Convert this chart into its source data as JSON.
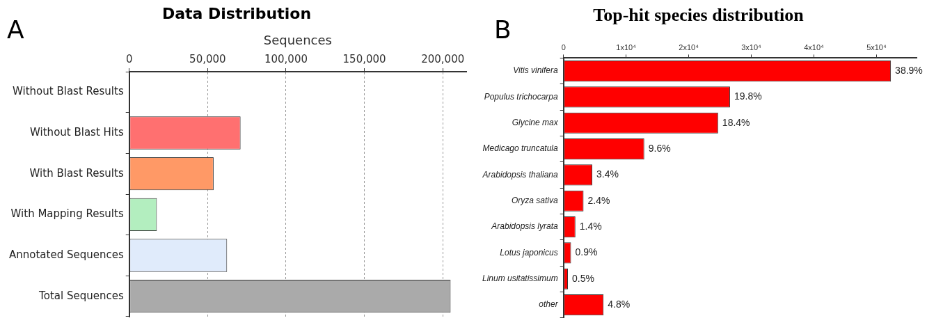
{
  "chart_data": [
    {
      "type": "bar",
      "title": "Data Distribution",
      "xlabel": "Sequences",
      "orientation": "horizontal",
      "annotations": [
        "A"
      ],
      "categories": [
        "Without Blast Results",
        "Without Blast Hits",
        "With Blast Results",
        "With Mapping Results",
        "Annotated Sequences",
        "Total Sequences"
      ],
      "values": [
        500,
        71000,
        53800,
        17600,
        62400,
        205000
      ],
      "colors": [
        "#333333",
        "#ff7070",
        "#ff9966",
        "#b3eebf",
        "#e0ebfb",
        "#aaaaaa"
      ],
      "xlim": [
        0,
        215000
      ],
      "xticks": [
        {
          "value": 0,
          "label": "0"
        },
        {
          "value": 50000,
          "label": "50,000"
        },
        {
          "value": 100000,
          "label": "100,000"
        },
        {
          "value": 150000,
          "label": "150,000"
        },
        {
          "value": 200000,
          "label": "200,000"
        }
      ],
      "grid": "x"
    },
    {
      "type": "bar",
      "title": "Top-hit species distribution",
      "orientation": "horizontal",
      "annotations": [
        "B",
        {
          "text": "38.9%",
          "x": 52300,
          "y": "Vitis vinifera"
        },
        {
          "text": "19.8%",
          "x": 26600,
          "y": "Populus trichocarpa"
        },
        {
          "text": "18.4%",
          "x": 24700,
          "y": "Glycine max"
        },
        {
          "text": "9.6%",
          "x": 12900,
          "y": "Medicago truncatula"
        },
        {
          "text": "3.4%",
          "x": 4600,
          "y": "Arabidopsis thaliana"
        },
        {
          "text": "2.4%",
          "x": 3200,
          "y": "Oryza sativa"
        },
        {
          "text": "1.4%",
          "x": 1900,
          "y": "Arabidopsis lyrata"
        },
        {
          "text": "0.9%",
          "x": 1200,
          "y": "Lotus japonicus"
        },
        {
          "text": "0.5%",
          "x": 700,
          "y": "Linum usitatissimum"
        },
        {
          "text": "4.8%",
          "x": 6400,
          "y": "other"
        }
      ],
      "categories": [
        "Vitis vinifera",
        "Populus trichocarpa",
        "Glycine max",
        "Medicago truncatula",
        "Arabidopsis thaliana",
        "Oryza sativa",
        "Arabidopsis lyrata",
        "Lotus japonicus",
        "Linum usitatissimum",
        "other"
      ],
      "values": [
        52300,
        26600,
        24700,
        12900,
        4600,
        3200,
        1900,
        1200,
        700,
        6400
      ],
      "colors": [
        "#ff0000",
        "#ff0000",
        "#ff0000",
        "#ff0000",
        "#ff0000",
        "#ff0000",
        "#ff0000",
        "#ff0000",
        "#ff0000",
        "#ff0000"
      ],
      "xlim": [
        0,
        56400
      ],
      "xticks": [
        0,
        {
          "value": 10000,
          "label": "1x10⁴"
        },
        {
          "value": 20000,
          "label": "2x10⁴"
        },
        {
          "value": 30000,
          "label": "3x10⁴"
        },
        {
          "value": 40000,
          "label": "4x10⁴"
        },
        {
          "value": 50000,
          "label": "5x10⁴"
        }
      ],
      "grid": false
    }
  ]
}
